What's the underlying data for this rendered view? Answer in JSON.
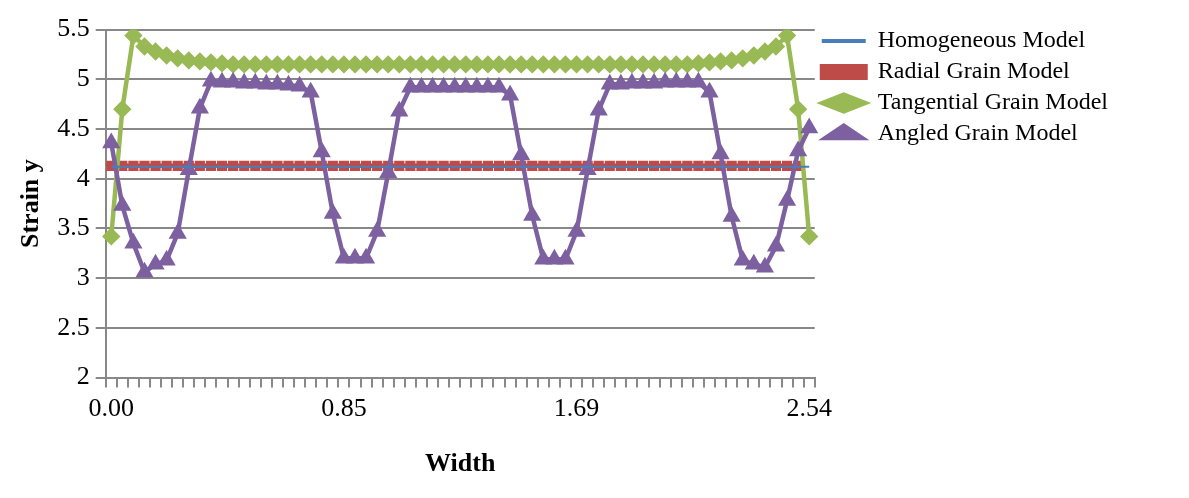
{
  "chart_data": {
    "type": "line",
    "xlabel": "Width",
    "ylabel": "Strain y",
    "categories": [
      "0.00",
      null,
      null,
      null,
      null,
      null,
      null,
      null,
      null,
      null,
      null,
      null,
      null,
      null,
      null,
      null,
      null,
      null,
      null,
      null,
      null,
      "0.85",
      null,
      null,
      null,
      null,
      null,
      null,
      null,
      null,
      null,
      null,
      null,
      null,
      null,
      null,
      null,
      null,
      null,
      null,
      null,
      null,
      "1.69",
      null,
      null,
      null,
      null,
      null,
      null,
      null,
      null,
      null,
      null,
      null,
      null,
      null,
      null,
      null,
      null,
      null,
      null,
      null,
      null,
      "2.54"
    ],
    "ylim": [
      2,
      5.5
    ],
    "yticks": [
      2,
      2.5,
      3,
      3.5,
      4,
      4.5,
      5,
      5.5
    ],
    "grid": "y",
    "legend": "right",
    "series": [
      {
        "name": "Homogeneous Model",
        "color": "#4a7ebb",
        "marker": "none",
        "values": [
          4.12,
          4.12,
          4.12,
          4.12,
          4.12,
          4.12,
          4.12,
          4.12,
          4.12,
          4.12,
          4.12,
          4.12,
          4.12,
          4.12,
          4.12,
          4.12,
          4.12,
          4.12,
          4.12,
          4.12,
          4.12,
          4.12,
          4.12,
          4.12,
          4.12,
          4.12,
          4.12,
          4.12,
          4.12,
          4.12,
          4.12,
          4.12,
          4.12,
          4.12,
          4.12,
          4.12,
          4.12,
          4.12,
          4.12,
          4.12,
          4.12,
          4.12,
          4.12,
          4.12,
          4.12,
          4.12,
          4.12,
          4.12,
          4.12,
          4.12,
          4.12,
          4.12,
          4.12,
          4.12,
          4.12,
          4.12,
          4.12,
          4.12,
          4.12,
          4.12,
          4.12,
          4.12,
          4.12,
          4.12
        ]
      },
      {
        "name": "Radial Grain Model",
        "color": "#be4b48",
        "marker": "square",
        "values": [
          4.13,
          4.13,
          4.13,
          4.13,
          4.13,
          4.13,
          4.13,
          4.13,
          4.13,
          4.13,
          4.13,
          4.13,
          4.13,
          4.13,
          4.13,
          4.13,
          4.13,
          4.13,
          4.13,
          4.13,
          4.13,
          4.13,
          4.13,
          4.13,
          4.13,
          4.13,
          4.13,
          4.13,
          4.13,
          4.13,
          4.13,
          4.13,
          4.13,
          4.13,
          4.13,
          4.13,
          4.13,
          4.13,
          4.13,
          4.13,
          4.13,
          4.13,
          4.13,
          4.13,
          4.13,
          4.13,
          4.13,
          4.13,
          4.13,
          4.13,
          4.13,
          4.13,
          4.13,
          4.13,
          4.13,
          4.13,
          4.13,
          4.13,
          4.13,
          4.13,
          4.13,
          4.13,
          4.13,
          null
        ]
      },
      {
        "name": "Tangential Grain Model",
        "color": "#98b954",
        "marker": "diamond",
        "values": [
          3.42,
          4.7,
          5.44,
          5.33,
          5.28,
          5.24,
          5.21,
          5.19,
          5.18,
          5.17,
          5.16,
          5.15,
          5.15,
          5.15,
          5.15,
          5.15,
          5.15,
          5.15,
          5.15,
          5.15,
          5.15,
          5.15,
          5.15,
          5.15,
          5.15,
          5.15,
          5.15,
          5.15,
          5.15,
          5.15,
          5.15,
          5.15,
          5.15,
          5.15,
          5.15,
          5.15,
          5.15,
          5.15,
          5.15,
          5.15,
          5.15,
          5.15,
          5.15,
          5.15,
          5.15,
          5.15,
          5.15,
          5.15,
          5.15,
          5.15,
          5.15,
          5.15,
          5.15,
          5.16,
          5.17,
          5.18,
          5.19,
          5.21,
          5.24,
          5.28,
          5.33,
          5.44,
          4.7,
          3.42
        ]
      },
      {
        "name": "Angled Grain Model",
        "color": "#7d60a0",
        "marker": "triangle",
        "values": [
          4.36,
          3.73,
          3.35,
          3.06,
          3.14,
          3.18,
          3.45,
          4.09,
          4.71,
          4.98,
          4.97,
          4.97,
          4.96,
          4.96,
          4.95,
          4.95,
          4.94,
          4.93,
          4.87,
          4.27,
          3.65,
          3.2,
          3.2,
          3.2,
          3.47,
          4.06,
          4.68,
          4.92,
          4.92,
          4.92,
          4.92,
          4.92,
          4.92,
          4.92,
          4.92,
          4.92,
          4.84,
          4.24,
          3.63,
          3.19,
          3.19,
          3.19,
          3.47,
          4.09,
          4.69,
          4.95,
          4.95,
          4.96,
          4.96,
          4.96,
          4.97,
          4.97,
          4.97,
          4.97,
          4.87,
          4.25,
          3.62,
          3.18,
          3.14,
          3.11,
          3.32,
          3.78,
          4.28,
          4.51
        ]
      }
    ]
  }
}
